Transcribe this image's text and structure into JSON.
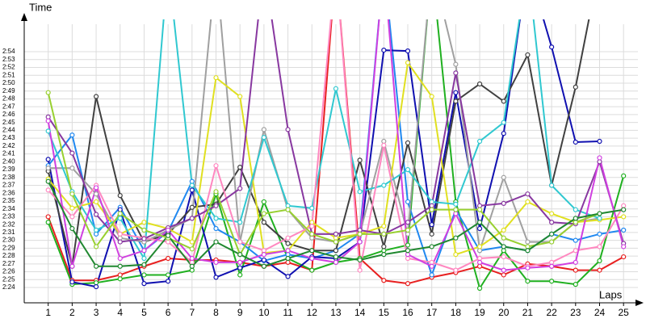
{
  "chart_data": {
    "type": "line",
    "y_label": "Time",
    "x_label": "Laps",
    "x": [
      1,
      2,
      3,
      4,
      5,
      6,
      7,
      8,
      9,
      10,
      11,
      12,
      13,
      14,
      15,
      16,
      17,
      18,
      19,
      20,
      21,
      22,
      23,
      24,
      25
    ],
    "xlim": [
      0,
      25.6
    ],
    "xticks": [
      1,
      2,
      3,
      4,
      5,
      6,
      7,
      8,
      9,
      10,
      11,
      12,
      13,
      14,
      15,
      16,
      17,
      18,
      19,
      20,
      21,
      22,
      23,
      24,
      25
    ],
    "ylim": [
      142.05,
      177.5
    ],
    "yticks": [
      {
        "value": 144,
        "label": "2:24"
      },
      {
        "value": 145,
        "label": "2:25"
      },
      {
        "value": 146,
        "label": "2:26"
      },
      {
        "value": 147,
        "label": "2:27"
      },
      {
        "value": 148,
        "label": "2:28"
      },
      {
        "value": 149,
        "label": "2:29"
      },
      {
        "value": 150,
        "label": "2:30"
      },
      {
        "value": 151,
        "label": "2:31"
      },
      {
        "value": 152,
        "label": "2:32"
      },
      {
        "value": 153,
        "label": "2:33"
      },
      {
        "value": 154,
        "label": "2:34"
      },
      {
        "value": 155,
        "label": "2:35"
      },
      {
        "value": 156,
        "label": "2:36"
      },
      {
        "value": 157,
        "label": "2:37"
      },
      {
        "value": 158,
        "label": "2:38"
      },
      {
        "value": 159,
        "label": "2:39"
      },
      {
        "value": 160,
        "label": "2:40"
      },
      {
        "value": 161,
        "label": "2:41"
      },
      {
        "value": 162,
        "label": "2:42"
      },
      {
        "value": 163,
        "label": "2:43"
      },
      {
        "value": 164,
        "label": "2:44"
      },
      {
        "value": 165,
        "label": "2:45"
      },
      {
        "value": 166,
        "label": "2:46"
      },
      {
        "value": 167,
        "label": "2:47"
      },
      {
        "value": 168,
        "label": "2:48"
      },
      {
        "value": 169,
        "label": "2:49"
      },
      {
        "value": 170,
        "label": "2:50"
      },
      {
        "value": 171,
        "label": "2:51"
      },
      {
        "value": 172,
        "label": "2:52"
      },
      {
        "value": 173,
        "label": "2:53"
      },
      {
        "value": 174,
        "label": "2:54"
      }
    ],
    "grid": true,
    "series": [
      {
        "color": "#e82020",
        "values": [
          153.0,
          144.9,
          144.9,
          145.6,
          146.7,
          147.7,
          147.5,
          147.5,
          147.2,
          146.7,
          147.2,
          146.2,
          185,
          147.7,
          144.9,
          144.5,
          145.3,
          145.9,
          146.7,
          145.6,
          147.0,
          146.7,
          146.2,
          146.2,
          147.9
        ]
      },
      {
        "color": "#20b020",
        "values": [
          152.3,
          144.4,
          144.6,
          145.1,
          145.6,
          145.6,
          146.2,
          155.9,
          145.6,
          154.9,
          147.7,
          146.2,
          147.2,
          147.7,
          148.7,
          149.4,
          185,
          154.9,
          143.9,
          148.7,
          144.8,
          144.8,
          144.4,
          147.4,
          158.2
        ]
      },
      {
        "color": "#2088f0",
        "values": [
          159.5,
          163.4,
          150.8,
          154.2,
          148.7,
          151.1,
          157.5,
          151.5,
          149.8,
          147.4,
          148.2,
          147.7,
          148.7,
          150.8,
          185,
          154.9,
          145.6,
          153.9,
          148.7,
          149.2,
          148.7,
          150.8,
          150.0,
          150.8,
          151.3
        ]
      },
      {
        "color": "#1010b0",
        "values": [
          160.3,
          144.7,
          144.1,
          153.9,
          144.5,
          144.8,
          156.4,
          145.3,
          146.5,
          147.5,
          145.4,
          147.9,
          147.7,
          149.8,
          174.2,
          174.1,
          152.0,
          168.8,
          151.5,
          163.6,
          185,
          174.6,
          162.5,
          162.6,
          null
        ]
      },
      {
        "color": "#404040",
        "values": [
          158.8,
          146.7,
          168.3,
          155.7,
          149.8,
          150.8,
          154.2,
          154.6,
          159.3,
          152.3,
          149.6,
          148.7,
          148.7,
          160.2,
          149.2,
          162.4,
          150.8,
          167.7,
          169.9,
          167.7,
          173.6,
          157.0,
          169.5,
          185,
          null
        ]
      },
      {
        "color": "#a0a0a0",
        "values": [
          159.2,
          159.2,
          155.9,
          150.3,
          149.8,
          151.3,
          152.8,
          185,
          149.8,
          164.1,
          153.9,
          150.3,
          149.8,
          150.8,
          162.6,
          150.8,
          185,
          172.4,
          148.7,
          158.0,
          149.8,
          149.8,
          152.3,
          152.8,
          null
        ]
      },
      {
        "color": "#e0e020",
        "values": [
          157.8,
          154.1,
          154.9,
          150.8,
          152.3,
          151.5,
          149.8,
          170.7,
          168.3,
          148.4,
          148.7,
          152.3,
          150.3,
          150.8,
          151.8,
          172.6,
          168.3,
          148.2,
          149.2,
          151.3,
          154.9,
          153.4,
          152.3,
          152.6,
          153.0
        ]
      },
      {
        "color": "#30c8d0",
        "values": [
          163.9,
          156.2,
          151.3,
          152.8,
          147.7,
          185,
          157.0,
          152.8,
          152.3,
          163.1,
          154.4,
          154.1,
          169.3,
          156.2,
          157.0,
          159.0,
          154.9,
          154.6,
          162.6,
          165.0,
          185,
          157.0,
          153.9,
          152.8,
          null
        ]
      },
      {
        "color": "#ff88c0",
        "values": [
          156.4,
          153.0,
          157.0,
          150.8,
          150.3,
          149.8,
          147.2,
          159.5,
          149.8,
          148.7,
          150.3,
          151.8,
          185,
          146.2,
          162.1,
          147.7,
          147.2,
          146.2,
          147.7,
          147.9,
          146.7,
          147.2,
          148.7,
          149.2,
          154.4
        ]
      },
      {
        "color": "#8838a0",
        "values": [
          165.7,
          161.1,
          153.3,
          149.8,
          150.2,
          151.6,
          152.8,
          154.4,
          156.6,
          185,
          164.1,
          150.8,
          150.8,
          151.3,
          150.8,
          152.3,
          154.4,
          171.3,
          154.4,
          154.7,
          155.9,
          152.3,
          152.1,
          160.0,
          149.6
        ]
      },
      {
        "color": "#d040e0",
        "values": [
          165.2,
          146.7,
          156.7,
          147.7,
          148.7,
          151.3,
          147.7,
          147.2,
          147.2,
          148.2,
          148.7,
          147.7,
          147.2,
          149.8,
          185,
          148.2,
          146.7,
          153.4,
          147.2,
          146.2,
          146.5,
          146.7,
          147.2,
          160.5,
          149.2
        ]
      },
      {
        "color": "#98d030",
        "values": [
          168.8,
          155.9,
          149.2,
          153.4,
          151.3,
          150.3,
          148.9,
          156.2,
          148.2,
          153.4,
          153.9,
          150.8,
          149.8,
          150.8,
          150.8,
          151.3,
          153.9,
          153.9,
          153.9,
          150.3,
          149.2,
          149.8,
          152.3,
          153.4,
          null
        ]
      },
      {
        "color": "#208830",
        "values": [
          157.5,
          151.5,
          146.7,
          146.7,
          146.9,
          150.6,
          146.7,
          149.8,
          148.2,
          146.7,
          147.7,
          148.7,
          147.9,
          147.5,
          148.2,
          148.7,
          149.2,
          150.3,
          152.3,
          149.2,
          148.7,
          150.8,
          152.8,
          153.4,
          153.9
        ]
      }
    ]
  }
}
